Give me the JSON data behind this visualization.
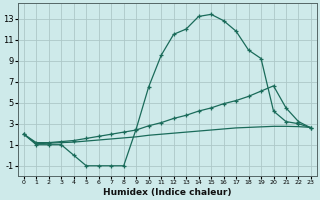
{
  "xlabel": "Humidex (Indice chaleur)",
  "background_color": "#ceeaea",
  "line_color": "#1a6b5a",
  "grid_color": "#adc8c8",
  "xlim": [
    -0.5,
    23.5
  ],
  "ylim": [
    -2,
    14.5
  ],
  "yticks": [
    -1,
    1,
    3,
    5,
    7,
    9,
    11,
    13
  ],
  "xticks": [
    0,
    1,
    2,
    3,
    4,
    5,
    6,
    7,
    8,
    9,
    10,
    11,
    12,
    13,
    14,
    15,
    16,
    17,
    18,
    19,
    20,
    21,
    22,
    23
  ],
  "line1_x": [
    0,
    1,
    2,
    3,
    4,
    5,
    6,
    7,
    8,
    9,
    10,
    11,
    12,
    13,
    14,
    15,
    16,
    17,
    18,
    19,
    20,
    21,
    22,
    23
  ],
  "line1_y": [
    2,
    1,
    1,
    1,
    0,
    -1,
    -1,
    -1,
    -1,
    2.5,
    6.5,
    9.5,
    11.5,
    12.0,
    13.2,
    13.4,
    12.8,
    11.8,
    10.0,
    9.2,
    4.2,
    3.2,
    3.0,
    2.6
  ],
  "line2_x": [
    0,
    1,
    2,
    3,
    4,
    5,
    6,
    7,
    8,
    9,
    10,
    11,
    12,
    13,
    14,
    15,
    16,
    17,
    18,
    19,
    20,
    21,
    22,
    23
  ],
  "line2_y": [
    2,
    1.2,
    1.2,
    1.3,
    1.4,
    1.6,
    1.8,
    2.0,
    2.2,
    2.4,
    2.8,
    3.1,
    3.5,
    3.8,
    4.2,
    4.5,
    4.9,
    5.2,
    5.6,
    6.1,
    6.6,
    4.5,
    3.2,
    2.6
  ],
  "line3_x": [
    0,
    1,
    2,
    3,
    4,
    5,
    6,
    7,
    8,
    9,
    10,
    11,
    12,
    13,
    14,
    15,
    16,
    17,
    18,
    19,
    20,
    21,
    22,
    23
  ],
  "line3_y": [
    2,
    1.1,
    1.15,
    1.2,
    1.25,
    1.35,
    1.45,
    1.55,
    1.65,
    1.75,
    1.9,
    2.0,
    2.1,
    2.2,
    2.3,
    2.4,
    2.5,
    2.6,
    2.65,
    2.7,
    2.75,
    2.75,
    2.72,
    2.65
  ]
}
